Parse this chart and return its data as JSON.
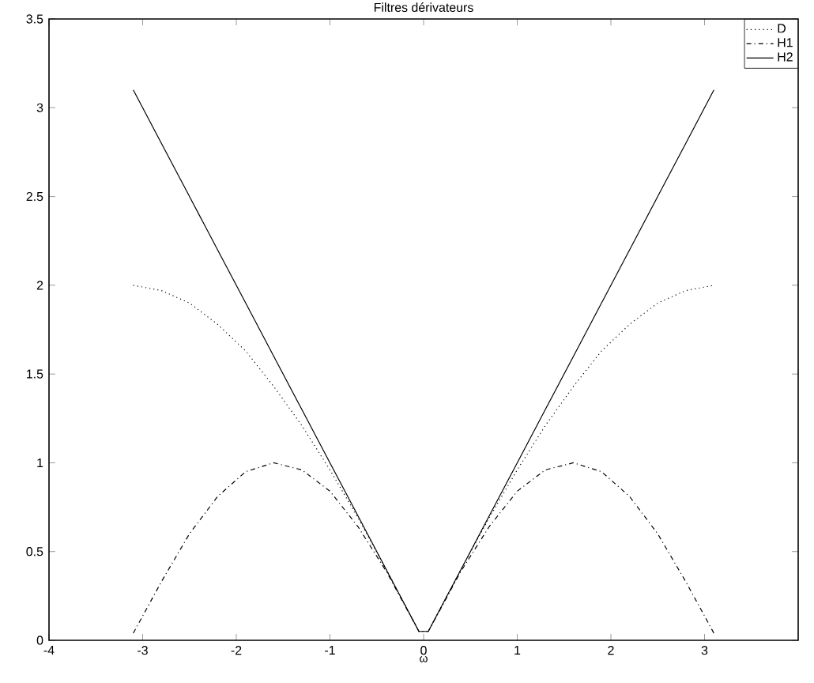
{
  "chart_data": {
    "type": "line",
    "title": "Filtres dérivateurs",
    "xlabel": "ω",
    "x": [
      -3.1,
      -2.8,
      -2.5,
      -2.2,
      -1.9,
      -1.6,
      -1.3,
      -1.0,
      -0.7,
      -0.4,
      -0.05,
      0.05,
      0.4,
      0.7,
      1.0,
      1.3,
      1.6,
      1.9,
      2.2,
      2.5,
      2.8,
      3.1
    ],
    "series": [
      {
        "name": "D",
        "color": "#000000",
        "line_style": "dotted",
        "values": [
          2.0,
          1.97,
          1.9,
          1.78,
          1.63,
          1.43,
          1.21,
          0.96,
          0.69,
          0.4,
          0.05,
          0.05,
          0.4,
          0.69,
          0.96,
          1.21,
          1.43,
          1.63,
          1.78,
          1.9,
          1.97,
          2.0
        ]
      },
      {
        "name": "H1",
        "color": "#000000",
        "line_style": "dashdot",
        "values": [
          0.04,
          0.33,
          0.6,
          0.81,
          0.95,
          1.0,
          0.96,
          0.84,
          0.64,
          0.39,
          0.05,
          0.05,
          0.39,
          0.64,
          0.84,
          0.96,
          1.0,
          0.95,
          0.81,
          0.6,
          0.33,
          0.04
        ]
      },
      {
        "name": "H2",
        "color": "#000000",
        "line_style": "solid",
        "values": [
          3.1,
          2.8,
          2.5,
          2.2,
          1.9,
          1.6,
          1.3,
          1.0,
          0.7,
          0.4,
          0.05,
          0.05,
          0.4,
          0.7,
          1.0,
          1.3,
          1.6,
          1.9,
          2.2,
          2.5,
          2.8,
          3.1
        ]
      }
    ],
    "xlim": [
      -4,
      4
    ],
    "xticks": [
      -4,
      -3,
      -2,
      -1,
      0,
      1,
      2,
      3
    ],
    "ylim": [
      0,
      3.5
    ],
    "yticks": [
      0,
      0.5,
      1,
      1.5,
      2,
      2.5,
      3,
      3.5
    ],
    "grid": false,
    "legend": "top right",
    "marker": "none"
  }
}
